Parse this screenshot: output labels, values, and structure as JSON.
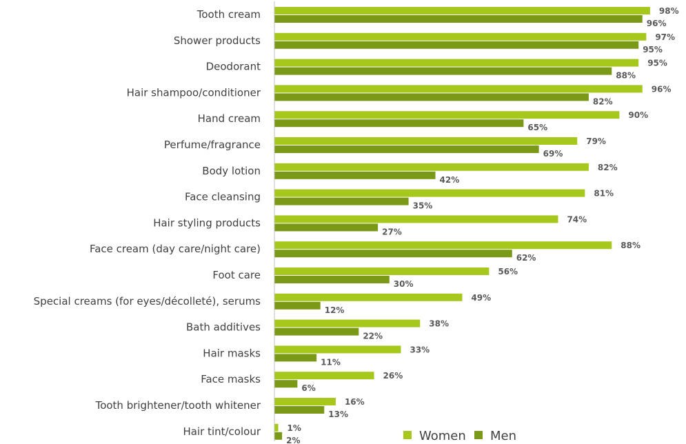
{
  "chart_data": {
    "type": "bar",
    "orientation": "horizontal",
    "categories": [
      "Tooth cream",
      "Shower products",
      "Deodorant",
      "Hair shampoo/conditioner",
      "Hand cream",
      "Perfume/fragrance",
      "Body lotion",
      "Face cleansing",
      "Hair styling products",
      "Face cream (day care/night care)",
      "Foot care",
      "Special creams (for eyes/décolleté), serums",
      "Bath additives",
      "Hair masks",
      "Face masks",
      "Tooth brightener/tooth whitener",
      "Hair tint/colour"
    ],
    "series": [
      {
        "name": "Women",
        "color": "#a6c81c",
        "values": [
          98,
          97,
          95,
          96,
          90,
          79,
          82,
          81,
          74,
          88,
          56,
          49,
          38,
          33,
          26,
          16,
          1
        ]
      },
      {
        "name": "Men",
        "color": "#7a9a17",
        "values": [
          96,
          95,
          88,
          82,
          65,
          69,
          42,
          35,
          27,
          62,
          30,
          12,
          22,
          11,
          6,
          13,
          2
        ]
      }
    ],
    "value_suffix": "%",
    "xlim": [
      0,
      100
    ],
    "legend_position": "bottom-center",
    "grid": false
  }
}
